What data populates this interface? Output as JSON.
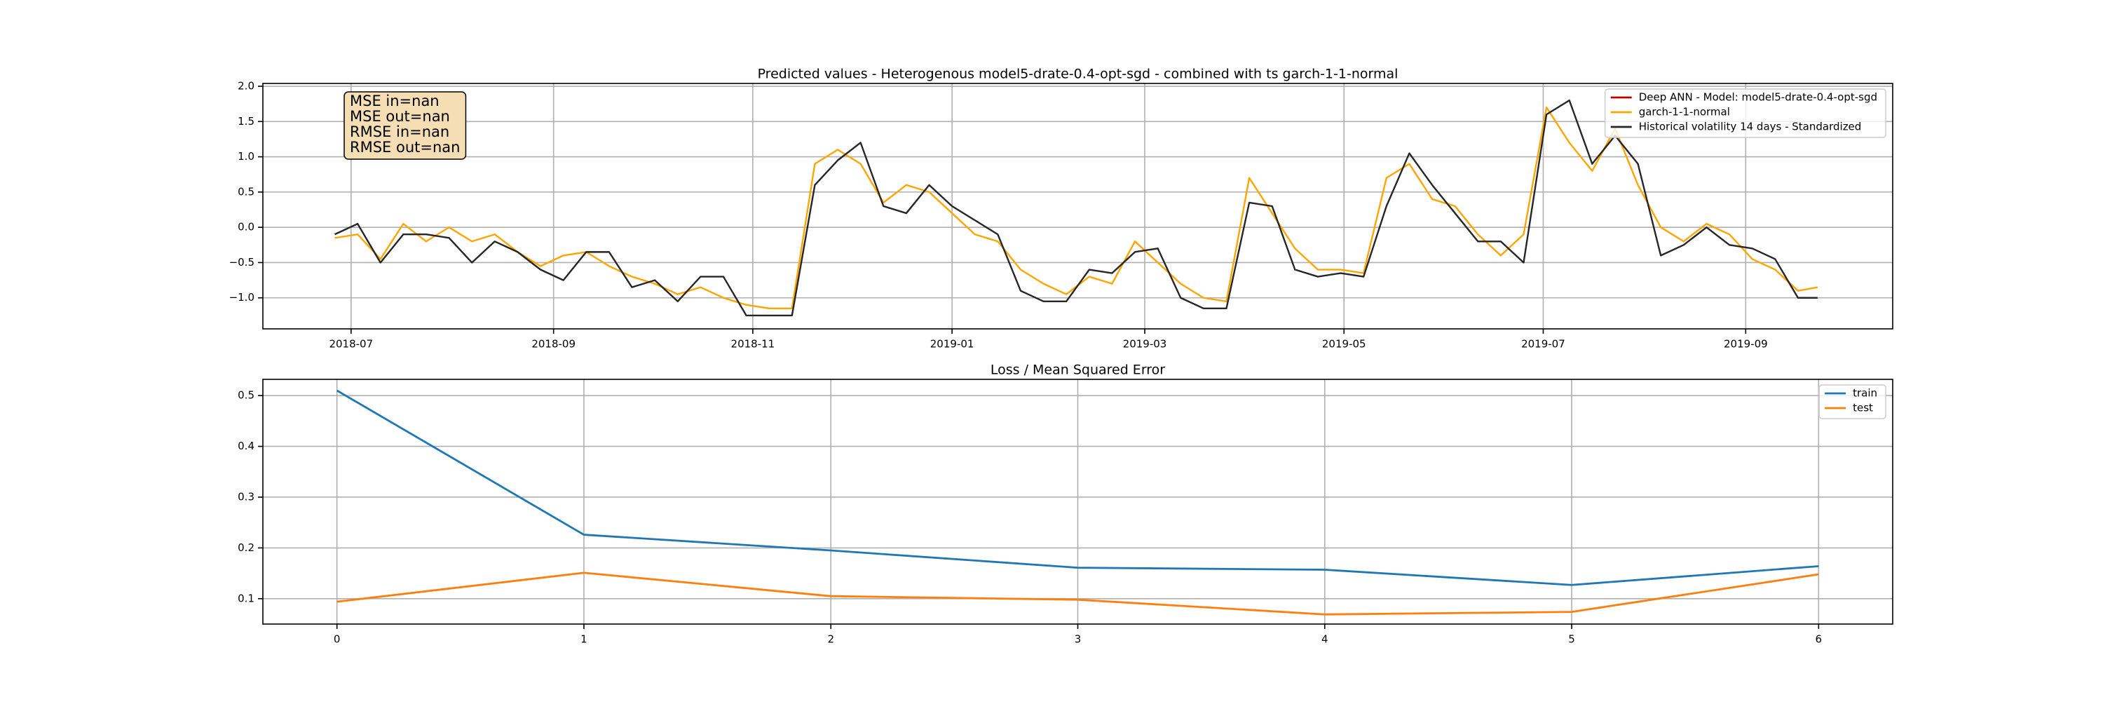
{
  "chart_data": [
    {
      "type": "line",
      "title": "Predicted values - Heterogenous model5-drate-0.4-opt-sgd - combined with ts garch-1-1-normal",
      "annotations": [
        "MSE in=nan",
        "MSE out=nan",
        "RMSE in=nan",
        "RMSE out=nan"
      ],
      "legend": "upper right",
      "grid": true,
      "xlim": [
        "2018-06-04",
        "2019-10-16"
      ],
      "xticks": [
        {
          "value": "2018-07-01",
          "label": "2018-07"
        },
        {
          "value": "2018-09-01",
          "label": "2018-09"
        },
        {
          "value": "2018-11-01",
          "label": "2018-11"
        },
        {
          "value": "2019-01-01",
          "label": "2019-01"
        },
        {
          "value": "2019-03-01",
          "label": "2019-03"
        },
        {
          "value": "2019-05-01",
          "label": "2019-05"
        },
        {
          "value": "2019-07-01",
          "label": "2019-07"
        },
        {
          "value": "2019-09-01",
          "label": "2019-09"
        }
      ],
      "ylim": [
        -1.44,
        2.04
      ],
      "yticks": [
        {
          "value": -1,
          "label": "−1.0"
        },
        {
          "value": -0.5,
          "label": "−0.5"
        },
        {
          "value": 0,
          "label": "0.0"
        },
        0.5,
        {
          "value": 1,
          "label": "1.0"
        },
        1.5,
        {
          "value": 2,
          "label": "2.0"
        }
      ],
      "x": [
        "2018-06-26",
        "2018-07-03",
        "2018-07-10",
        "2018-07-17",
        "2018-07-24",
        "2018-07-31",
        "2018-08-07",
        "2018-08-14",
        "2018-08-21",
        "2018-08-28",
        "2018-09-04",
        "2018-09-11",
        "2018-09-18",
        "2018-09-25",
        "2018-10-02",
        "2018-10-09",
        "2018-10-16",
        "2018-10-23",
        "2018-10-30",
        "2018-11-06",
        "2018-11-13",
        "2018-11-20",
        "2018-11-27",
        "2018-12-04",
        "2018-12-11",
        "2018-12-18",
        "2018-12-25",
        "2019-01-01",
        "2019-01-08",
        "2019-01-15",
        "2019-01-22",
        "2019-01-29",
        "2019-02-05",
        "2019-02-12",
        "2019-02-19",
        "2019-02-26",
        "2019-03-05",
        "2019-03-12",
        "2019-03-19",
        "2019-03-26",
        "2019-04-02",
        "2019-04-09",
        "2019-04-16",
        "2019-04-23",
        "2019-04-30",
        "2019-05-07",
        "2019-05-14",
        "2019-05-21",
        "2019-05-28",
        "2019-06-04",
        "2019-06-11",
        "2019-06-18",
        "2019-06-25",
        "2019-07-02",
        "2019-07-09",
        "2019-07-16",
        "2019-07-23",
        "2019-07-30",
        "2019-08-06",
        "2019-08-13",
        "2019-08-20",
        "2019-08-27",
        "2019-09-03",
        "2019-09-10",
        "2019-09-17",
        "2019-09-23"
      ],
      "series": [
        {
          "name": "Deep ANN - Model: model5-drate-0.4-opt-sgd",
          "color": "#c00000",
          "values": [
            null,
            null,
            null,
            null,
            null,
            null,
            null,
            null,
            null,
            null,
            null,
            null,
            null,
            null,
            null,
            null,
            null,
            null,
            null,
            null,
            null,
            null,
            null,
            null,
            null,
            null,
            null,
            null,
            null,
            null,
            null,
            null,
            null,
            null,
            null,
            null,
            null,
            null,
            null,
            null,
            null,
            null,
            null,
            null,
            null,
            null,
            null,
            null,
            null,
            null,
            null,
            null,
            null,
            null,
            null,
            null,
            null,
            null,
            null,
            null,
            null,
            null,
            null,
            null,
            null,
            null
          ]
        },
        {
          "name": "garch-1-1-normal",
          "color": "#ffa500",
          "values": [
            -0.15,
            -0.1,
            -0.45,
            0.05,
            -0.2,
            0.0,
            -0.2,
            -0.1,
            -0.35,
            -0.55,
            -0.4,
            -0.35,
            -0.55,
            -0.7,
            -0.8,
            -0.95,
            -0.85,
            -1.0,
            -1.1,
            -1.15,
            -1.15,
            0.9,
            1.1,
            0.9,
            0.35,
            0.6,
            0.5,
            0.2,
            -0.1,
            -0.2,
            -0.6,
            -0.8,
            -0.95,
            -0.7,
            -0.8,
            -0.2,
            -0.5,
            -0.8,
            -1.0,
            -1.05,
            0.7,
            0.2,
            -0.3,
            -0.6,
            -0.6,
            -0.65,
            0.7,
            0.9,
            0.4,
            0.3,
            -0.1,
            -0.4,
            -0.1,
            1.7,
            1.2,
            0.8,
            1.4,
            0.6,
            0.0,
            -0.2,
            0.05,
            -0.1,
            -0.45,
            -0.6,
            -0.9,
            -0.85
          ]
        },
        {
          "name": "Historical volatility 14 days - Standardized",
          "color": "#262626",
          "values": [
            -0.1,
            0.05,
            -0.5,
            -0.1,
            -0.1,
            -0.15,
            -0.5,
            -0.2,
            -0.35,
            -0.6,
            -0.75,
            -0.35,
            -0.35,
            -0.85,
            -0.75,
            -1.05,
            -0.7,
            -0.7,
            -1.25,
            -1.25,
            -1.25,
            0.6,
            0.95,
            1.2,
            0.3,
            0.2,
            0.6,
            0.3,
            0.1,
            -0.1,
            -0.9,
            -1.05,
            -1.05,
            -0.6,
            -0.65,
            -0.35,
            -0.3,
            -1.0,
            -1.15,
            -1.15,
            0.35,
            0.3,
            -0.6,
            -0.7,
            -0.65,
            -0.7,
            0.3,
            1.05,
            0.6,
            0.2,
            -0.2,
            -0.2,
            -0.5,
            1.6,
            1.8,
            0.9,
            1.3,
            0.9,
            -0.4,
            -0.25,
            0.0,
            -0.25,
            -0.3,
            -0.45,
            -1.0,
            -1.0
          ]
        }
      ]
    },
    {
      "type": "line",
      "title": "Loss / Mean Squared Error",
      "legend": "upper right",
      "grid": true,
      "xlim": [
        -0.3,
        6.3
      ],
      "xticks": [
        0,
        1,
        2,
        3,
        4,
        5,
        6
      ],
      "ylim": [
        0.05,
        0.532
      ],
      "yticks": [
        0.1,
        0.2,
        0.3,
        0.4,
        0.5
      ],
      "x": [
        0,
        1,
        2,
        3,
        4,
        5,
        6
      ],
      "series": [
        {
          "name": "train",
          "color": "#1f77b4",
          "values": [
            0.51,
            0.226,
            0.195,
            0.161,
            0.157,
            0.127,
            0.164
          ]
        },
        {
          "name": "test",
          "color": "#ff7f0e",
          "values": [
            0.094,
            0.151,
            0.105,
            0.098,
            0.069,
            0.074,
            0.148
          ]
        }
      ]
    }
  ]
}
